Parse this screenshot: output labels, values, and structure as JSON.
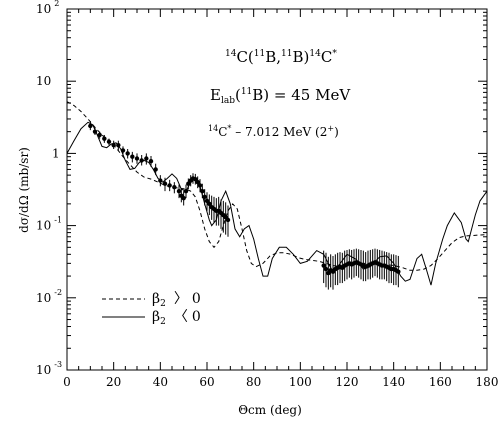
{
  "chart_data": {
    "type": "line",
    "title": "",
    "xlabel": "Θcm (deg)",
    "ylabel": "dσ/dΩ (mb/sr)",
    "xlim": [
      0,
      180
    ],
    "ylim": [
      0.001,
      100
    ],
    "y_scale": "log",
    "grid": false,
    "x_ticks": [
      0,
      20,
      40,
      60,
      80,
      100,
      120,
      140,
      160,
      180
    ],
    "y_ticks": [
      {
        "value": 0.001,
        "base": "10",
        "exponent": "-3"
      },
      {
        "value": 0.01,
        "base": "10",
        "exponent": "-2"
      },
      {
        "value": 0.1,
        "base": "10",
        "exponent": "-1"
      },
      {
        "value": 1,
        "base": "1",
        "exponent": ""
      },
      {
        "value": 10,
        "base": "10",
        "exponent": ""
      },
      {
        "value": 100,
        "base": "10",
        "exponent": "2"
      }
    ],
    "annotations": {
      "reaction": {
        "pre": "14",
        "c1": "C(",
        "pre2": "11",
        "b1": "B,",
        "pre3": "11",
        "b2": "B)",
        "pre4": "14",
        "c2": "C",
        "star": "*"
      },
      "energy": {
        "e": "E",
        "lab": "lab",
        "open": "(",
        "pre": "11",
        "b": "B)",
        "eq": " = 45 MeV"
      },
      "state": {
        "pre": "14",
        "c": "C",
        "star": "*",
        "rest": " – 7.012 MeV (2",
        "plus": "+",
        "close": ")"
      }
    },
    "legend": {
      "placement": "bottom-left",
      "entries": [
        {
          "style": "dashed",
          "beta": "β",
          "sub": "2",
          "rel": "〉",
          "val": "0"
        },
        {
          "style": "solid",
          "beta": "β",
          "sub": "2",
          "rel": "〈",
          "val": "0"
        }
      ]
    },
    "series": [
      {
        "style": "solid",
        "points": [
          [
            0,
            1.0
          ],
          [
            3,
            1.5
          ],
          [
            6,
            2.2
          ],
          [
            9,
            2.7
          ],
          [
            11,
            2.5
          ],
          [
            13,
            1.8
          ],
          [
            15,
            1.25
          ],
          [
            17,
            1.2
          ],
          [
            19,
            1.35
          ],
          [
            21,
            1.4
          ],
          [
            23,
            1.15
          ],
          [
            25,
            0.8
          ],
          [
            27,
            0.6
          ],
          [
            29,
            0.62
          ],
          [
            31,
            0.75
          ],
          [
            33,
            0.8
          ],
          [
            35,
            0.75
          ],
          [
            37,
            0.6
          ],
          [
            39,
            0.45
          ],
          [
            41,
            0.4
          ],
          [
            43,
            0.45
          ],
          [
            45,
            0.52
          ],
          [
            47,
            0.45
          ],
          [
            49,
            0.32
          ],
          [
            51,
            0.3
          ],
          [
            53,
            0.4
          ],
          [
            55,
            0.45
          ],
          [
            57,
            0.35
          ],
          [
            59,
            0.2
          ],
          [
            61,
            0.12
          ],
          [
            62,
            0.1
          ],
          [
            64,
            0.12
          ],
          [
            66,
            0.22
          ],
          [
            68,
            0.3
          ],
          [
            70,
            0.2
          ],
          [
            72,
            0.09
          ],
          [
            74,
            0.07
          ],
          [
            76,
            0.09
          ],
          [
            78,
            0.1
          ],
          [
            80,
            0.065
          ],
          [
            82,
            0.035
          ],
          [
            84,
            0.02
          ],
          [
            86,
            0.02
          ],
          [
            88,
            0.035
          ],
          [
            91,
            0.05
          ],
          [
            94,
            0.05
          ],
          [
            97,
            0.04
          ],
          [
            100,
            0.03
          ],
          [
            103,
            0.032
          ],
          [
            107,
            0.045
          ],
          [
            110,
            0.04
          ],
          [
            112,
            0.03
          ],
          [
            114,
            0.023
          ],
          [
            116,
            0.027
          ],
          [
            120,
            0.04
          ],
          [
            124,
            0.034
          ],
          [
            127,
            0.025
          ],
          [
            130,
            0.027
          ],
          [
            134,
            0.037
          ],
          [
            137,
            0.038
          ],
          [
            140,
            0.03
          ],
          [
            143,
            0.02
          ],
          [
            145,
            0.017
          ],
          [
            147,
            0.018
          ],
          [
            150,
            0.035
          ],
          [
            152,
            0.04
          ],
          [
            154,
            0.025
          ],
          [
            156,
            0.015
          ],
          [
            158,
            0.03
          ],
          [
            161,
            0.065
          ],
          [
            163,
            0.1
          ],
          [
            166,
            0.15
          ],
          [
            169,
            0.11
          ],
          [
            171,
            0.065
          ],
          [
            172,
            0.06
          ],
          [
            175,
            0.14
          ],
          [
            177,
            0.22
          ],
          [
            180,
            0.3
          ]
        ]
      },
      {
        "style": "dashed",
        "points": [
          [
            0,
            5.2
          ],
          [
            3,
            4.6
          ],
          [
            6,
            3.8
          ],
          [
            9,
            3.0
          ],
          [
            12,
            2.3
          ],
          [
            15,
            1.8
          ],
          [
            18,
            1.5
          ],
          [
            21,
            1.2
          ],
          [
            24,
            0.9
          ],
          [
            27,
            0.7
          ],
          [
            30,
            0.55
          ],
          [
            33,
            0.47
          ],
          [
            36,
            0.44
          ],
          [
            39,
            0.4
          ],
          [
            42,
            0.36
          ],
          [
            45,
            0.34
          ],
          [
            48,
            0.33
          ],
          [
            51,
            0.32
          ],
          [
            53,
            0.3
          ],
          [
            55,
            0.25
          ],
          [
            57,
            0.16
          ],
          [
            59,
            0.09
          ],
          [
            61,
            0.06
          ],
          [
            63,
            0.05
          ],
          [
            65,
            0.06
          ],
          [
            67,
            0.1
          ],
          [
            69,
            0.16
          ],
          [
            71,
            0.2
          ],
          [
            73,
            0.17
          ],
          [
            75,
            0.09
          ],
          [
            77,
            0.045
          ],
          [
            79,
            0.03
          ],
          [
            81,
            0.027
          ],
          [
            84,
            0.03
          ],
          [
            87,
            0.038
          ],
          [
            90,
            0.042
          ],
          [
            93,
            0.042
          ],
          [
            96,
            0.04
          ],
          [
            99,
            0.036
          ],
          [
            102,
            0.034
          ],
          [
            105,
            0.033
          ],
          [
            108,
            0.032
          ],
          [
            111,
            0.03
          ],
          [
            114,
            0.028
          ],
          [
            117,
            0.027
          ],
          [
            120,
            0.028
          ],
          [
            124,
            0.03
          ],
          [
            128,
            0.03
          ],
          [
            132,
            0.03
          ],
          [
            136,
            0.029
          ],
          [
            140,
            0.028
          ],
          [
            144,
            0.026
          ],
          [
            147,
            0.024
          ],
          [
            150,
            0.024
          ],
          [
            153,
            0.025
          ],
          [
            156,
            0.028
          ],
          [
            159,
            0.035
          ],
          [
            162,
            0.045
          ],
          [
            165,
            0.058
          ],
          [
            168,
            0.068
          ],
          [
            171,
            0.072
          ],
          [
            174,
            0.073
          ],
          [
            177,
            0.074
          ],
          [
            180,
            0.075
          ]
        ]
      },
      {
        "style": "points-with-error-bars",
        "points": [
          [
            10,
            2.4,
            2.1,
            2.8
          ],
          [
            12,
            2.0,
            1.8,
            2.3
          ],
          [
            14,
            1.8,
            1.6,
            2.0
          ],
          [
            16,
            1.6,
            1.4,
            1.8
          ],
          [
            18,
            1.45,
            1.3,
            1.6
          ],
          [
            20,
            1.3,
            1.15,
            1.5
          ],
          [
            22,
            1.3,
            1.1,
            1.5
          ],
          [
            24,
            1.1,
            0.95,
            1.25
          ],
          [
            26,
            1.0,
            0.85,
            1.15
          ],
          [
            28,
            0.9,
            0.75,
            1.05
          ],
          [
            30,
            0.85,
            0.72,
            1.0
          ],
          [
            32,
            0.8,
            0.68,
            0.95
          ],
          [
            34,
            0.85,
            0.7,
            1.0
          ],
          [
            36,
            0.78,
            0.65,
            0.92
          ],
          [
            38,
            0.6,
            0.5,
            0.72
          ],
          [
            40,
            0.42,
            0.35,
            0.5
          ],
          [
            42,
            0.38,
            0.3,
            0.46
          ],
          [
            44,
            0.36,
            0.3,
            0.43
          ],
          [
            46,
            0.34,
            0.28,
            0.4
          ],
          [
            48,
            0.3,
            0.24,
            0.37
          ],
          [
            49,
            0.26,
            0.21,
            0.32
          ],
          [
            50,
            0.24,
            0.19,
            0.3
          ],
          [
            51,
            0.3,
            0.24,
            0.37
          ],
          [
            52,
            0.38,
            0.32,
            0.45
          ],
          [
            53,
            0.42,
            0.35,
            0.5
          ],
          [
            54,
            0.45,
            0.38,
            0.53
          ],
          [
            55,
            0.44,
            0.37,
            0.52
          ],
          [
            56,
            0.4,
            0.33,
            0.48
          ],
          [
            57,
            0.36,
            0.29,
            0.44
          ],
          [
            58,
            0.3,
            0.24,
            0.38
          ],
          [
            59,
            0.25,
            0.19,
            0.32
          ],
          [
            60,
            0.22,
            0.16,
            0.29
          ],
          [
            61,
            0.2,
            0.14,
            0.27
          ],
          [
            62,
            0.18,
            0.12,
            0.26
          ],
          [
            63,
            0.17,
            0.11,
            0.25
          ],
          [
            64,
            0.16,
            0.1,
            0.24
          ],
          [
            65,
            0.16,
            0.1,
            0.25
          ],
          [
            66,
            0.15,
            0.09,
            0.23
          ],
          [
            67,
            0.14,
            0.08,
            0.22
          ],
          [
            68,
            0.13,
            0.075,
            0.21
          ],
          [
            69,
            0.12,
            0.07,
            0.19
          ],
          [
            110,
            0.028,
            0.016,
            0.045
          ],
          [
            111,
            0.025,
            0.014,
            0.042
          ],
          [
            112,
            0.022,
            0.013,
            0.037
          ],
          [
            113,
            0.024,
            0.014,
            0.04
          ],
          [
            114,
            0.023,
            0.013,
            0.038
          ],
          [
            115,
            0.025,
            0.015,
            0.04
          ],
          [
            116,
            0.026,
            0.015,
            0.042
          ],
          [
            117,
            0.027,
            0.016,
            0.043
          ],
          [
            118,
            0.026,
            0.016,
            0.042
          ],
          [
            119,
            0.028,
            0.017,
            0.045
          ],
          [
            120,
            0.029,
            0.018,
            0.046
          ],
          [
            121,
            0.03,
            0.019,
            0.047
          ],
          [
            122,
            0.029,
            0.018,
            0.046
          ],
          [
            123,
            0.03,
            0.019,
            0.047
          ],
          [
            124,
            0.031,
            0.02,
            0.048
          ],
          [
            125,
            0.03,
            0.019,
            0.047
          ],
          [
            126,
            0.029,
            0.018,
            0.046
          ],
          [
            127,
            0.028,
            0.017,
            0.045
          ],
          [
            128,
            0.027,
            0.017,
            0.043
          ],
          [
            129,
            0.028,
            0.018,
            0.045
          ],
          [
            130,
            0.029,
            0.018,
            0.046
          ],
          [
            131,
            0.03,
            0.019,
            0.047
          ],
          [
            132,
            0.031,
            0.02,
            0.048
          ],
          [
            133,
            0.03,
            0.019,
            0.047
          ],
          [
            134,
            0.029,
            0.018,
            0.046
          ],
          [
            135,
            0.028,
            0.018,
            0.045
          ],
          [
            136,
            0.028,
            0.018,
            0.044
          ],
          [
            137,
            0.027,
            0.017,
            0.043
          ],
          [
            138,
            0.026,
            0.016,
            0.042
          ],
          [
            139,
            0.025,
            0.016,
            0.04
          ],
          [
            140,
            0.025,
            0.015,
            0.04
          ],
          [
            141,
            0.024,
            0.015,
            0.039
          ],
          [
            142,
            0.023,
            0.014,
            0.038
          ]
        ]
      }
    ]
  }
}
